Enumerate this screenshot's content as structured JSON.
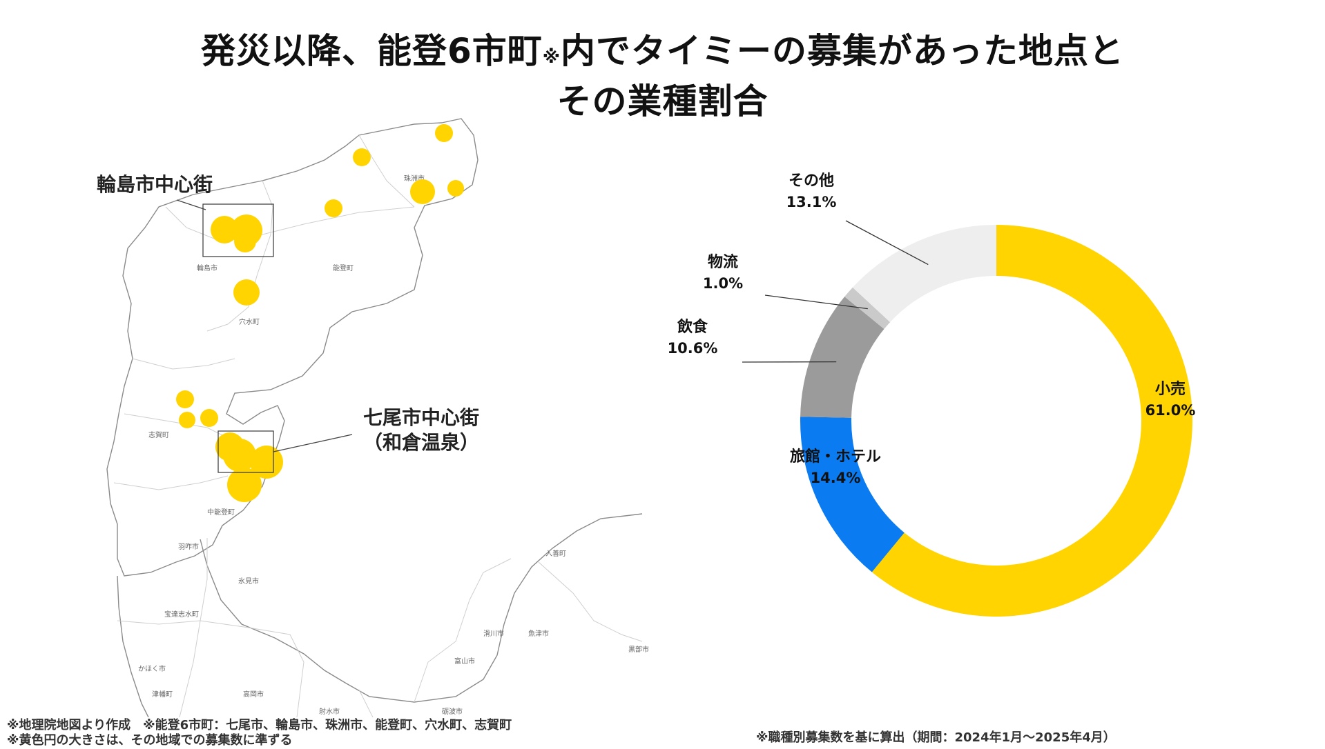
{
  "title": {
    "line1_part1": "発災以降、能登6市町",
    "line1_note_mark": "※",
    "line1_part2": "内でタイミーの募集があった地点と",
    "line2": "その業種割合"
  },
  "map": {
    "labels": {
      "wajima_center": "輪島市中心街",
      "nanao_center_line1": "七尾市中心街",
      "nanao_center_line2": "（和倉温泉）"
    },
    "town_labels": [
      "珠洲市",
      "輪島市",
      "能登町",
      "穴水町",
      "志賀町",
      "中能登町",
      "羽咋市",
      "氷見市",
      "宝達志水町",
      "かほく市",
      "津幡町",
      "高岡市",
      "射水市",
      "砺波市",
      "富山市",
      "魚津市",
      "黒部市",
      "入善町",
      "滑川市"
    ],
    "highlight_color": "#FFD400"
  },
  "notes": {
    "source": "※地理院地図より作成　※能登6市町：七尾市、輪島市、珠洲市、能登町、穴水町、志賀町",
    "circle_size": "※黄色円の大きさは、その地域での募集数に準ずる",
    "calc": "※職種別募集数を基に算出（期間：2024年1月〜2025年4月）"
  },
  "chart_data": {
    "type": "pie",
    "subtype": "donut",
    "slices": [
      {
        "label": "小売",
        "value": 61.0,
        "display": "61.0%",
        "color": "#FFD400"
      },
      {
        "label": "旅館・ホテル",
        "value": 14.4,
        "display": "14.4%",
        "color": "#0A7BF0"
      },
      {
        "label": "飲食",
        "value": 10.6,
        "display": "10.6%",
        "color": "#9B9B9B"
      },
      {
        "label": "物流",
        "value": 1.0,
        "display": "1.0%",
        "color": "#CACACA"
      },
      {
        "label": "その他",
        "value": 13.1,
        "display": "13.1%",
        "color": "#EEEEEE"
      }
    ],
    "start": "12 o'clock",
    "direction": "clockwise"
  }
}
